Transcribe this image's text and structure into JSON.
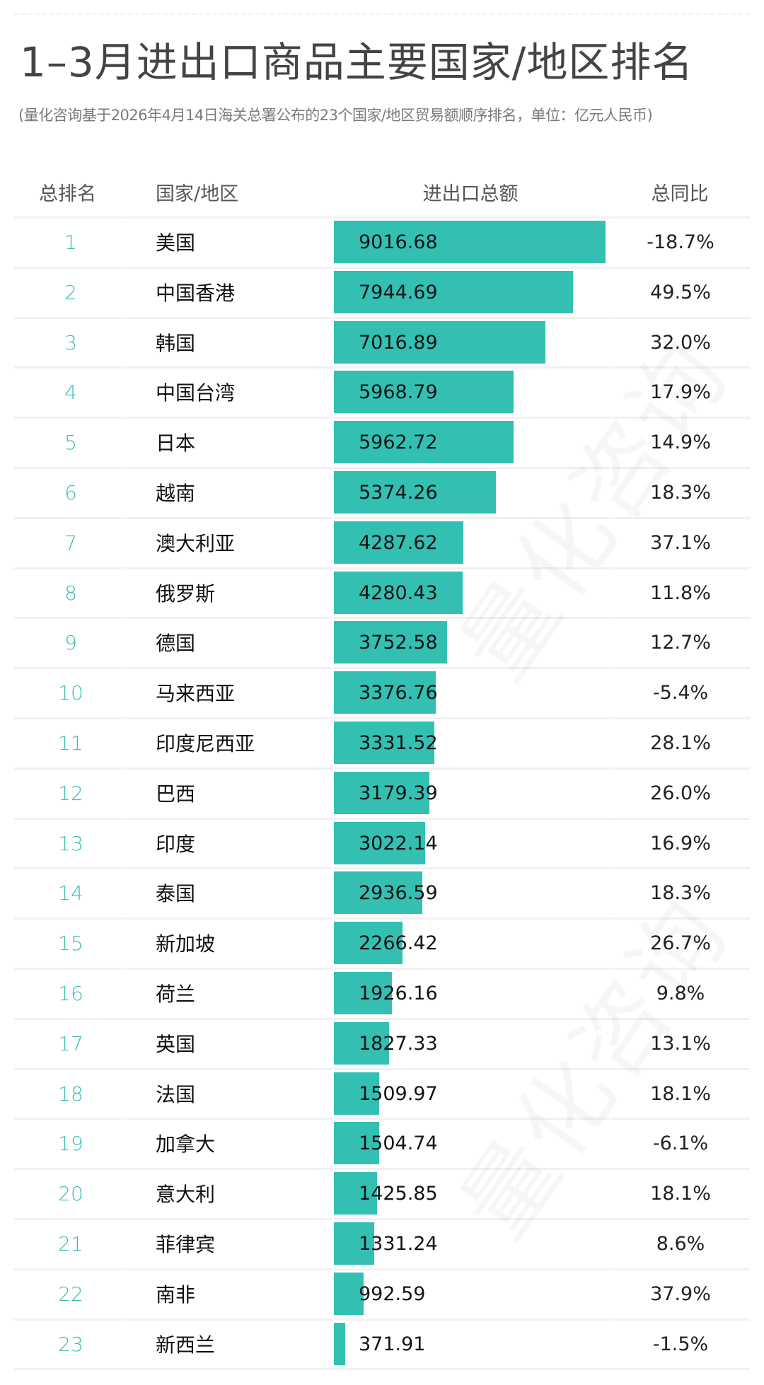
{
  "title": "1–3月进出口商品主要国家/地区排名",
  "subtitle": "(量化咨询基于2026年4月14日海关总署公布的23个国家/地区贸易额顺序排名，单位：亿元人民币)",
  "watermark": "量化咨询",
  "table": {
    "headers": {
      "rank": "总排名",
      "country": "国家/地区",
      "amount": "进出口总额",
      "yoy": "总同比"
    },
    "rows": [
      {
        "rank": "1",
        "country": "美国",
        "amount": "9016.68",
        "yoy": "-18.7%"
      },
      {
        "rank": "2",
        "country": "中国香港",
        "amount": "7944.69",
        "yoy": "49.5%"
      },
      {
        "rank": "3",
        "country": "韩国",
        "amount": "7016.89",
        "yoy": "32.0%"
      },
      {
        "rank": "4",
        "country": "中国台湾",
        "amount": "5968.79",
        "yoy": "17.9%"
      },
      {
        "rank": "5",
        "country": "日本",
        "amount": "5962.72",
        "yoy": "14.9%"
      },
      {
        "rank": "6",
        "country": "越南",
        "amount": "5374.26",
        "yoy": "18.3%"
      },
      {
        "rank": "7",
        "country": "澳大利亚",
        "amount": "4287.62",
        "yoy": "37.1%"
      },
      {
        "rank": "8",
        "country": "俄罗斯",
        "amount": "4280.43",
        "yoy": "11.8%"
      },
      {
        "rank": "9",
        "country": "德国",
        "amount": "3752.58",
        "yoy": "12.7%"
      },
      {
        "rank": "10",
        "country": "马来西亚",
        "amount": "3376.76",
        "yoy": "-5.4%"
      },
      {
        "rank": "11",
        "country": "印度尼西亚",
        "amount": "3331.52",
        "yoy": "28.1%"
      },
      {
        "rank": "12",
        "country": "巴西",
        "amount": "3179.39",
        "yoy": "26.0%"
      },
      {
        "rank": "13",
        "country": "印度",
        "amount": "3022.14",
        "yoy": "16.9%"
      },
      {
        "rank": "14",
        "country": "泰国",
        "amount": "2936.59",
        "yoy": "18.3%"
      },
      {
        "rank": "15",
        "country": "新加坡",
        "amount": "2266.42",
        "yoy": "26.7%"
      },
      {
        "rank": "16",
        "country": "荷兰",
        "amount": "1926.16",
        "yoy": "9.8%"
      },
      {
        "rank": "17",
        "country": "英国",
        "amount": "1827.33",
        "yoy": "13.1%"
      },
      {
        "rank": "18",
        "country": "法国",
        "amount": "1509.97",
        "yoy": "18.1%"
      },
      {
        "rank": "19",
        "country": "加拿大",
        "amount": "1504.74",
        "yoy": "-6.1%"
      },
      {
        "rank": "20",
        "country": "意大利",
        "amount": "1425.85",
        "yoy": "18.1%"
      },
      {
        "rank": "21",
        "country": "菲律宾",
        "amount": "1331.24",
        "yoy": "8.6%"
      },
      {
        "rank": "22",
        "country": "南非",
        "amount": "992.59",
        "yoy": "37.9%"
      },
      {
        "rank": "23",
        "country": "新西兰",
        "amount": "371.91",
        "yoy": "-1.5%"
      }
    ]
  },
  "colors": {
    "bar": "#33c0b3",
    "rank": "#3cbfb1",
    "title": "#444444"
  },
  "chart_data": {
    "type": "bar",
    "orientation": "horizontal",
    "title": "1–3月进出口商品主要国家/地区排名",
    "subtitle": "(量化咨询基于2026年4月14日海关总署公布的23个国家/地区贸易额顺序排名，单位：亿元人民币)",
    "xlabel": "进出口总额",
    "ylabel": "国家/地区",
    "unit": "亿元人民币",
    "categories": [
      "美国",
      "中国香港",
      "韩国",
      "中国台湾",
      "日本",
      "越南",
      "澳大利亚",
      "俄罗斯",
      "德国",
      "马来西亚",
      "印度尼西亚",
      "巴西",
      "印度",
      "泰国",
      "新加坡",
      "荷兰",
      "英国",
      "法国",
      "加拿大",
      "意大利",
      "菲律宾",
      "南非",
      "新西兰"
    ],
    "series": [
      {
        "name": "进出口总额",
        "values": [
          9016.68,
          7944.69,
          7016.89,
          5968.79,
          5962.72,
          5374.26,
          4287.62,
          4280.43,
          3752.58,
          3376.76,
          3331.52,
          3179.39,
          3022.14,
          2936.59,
          2266.42,
          1926.16,
          1827.33,
          1509.97,
          1504.74,
          1425.85,
          1331.24,
          992.59,
          371.91
        ]
      },
      {
        "name": "总同比(%)",
        "values": [
          -18.7,
          49.5,
          32.0,
          17.9,
          14.9,
          18.3,
          37.1,
          11.8,
          12.7,
          -5.4,
          28.1,
          26.0,
          16.9,
          18.3,
          26.7,
          9.8,
          13.1,
          18.1,
          -6.1,
          18.1,
          8.6,
          37.9,
          -1.5
        ]
      }
    ],
    "xlim": [
      0,
      9016.68
    ],
    "grid": false,
    "legend": "none"
  }
}
